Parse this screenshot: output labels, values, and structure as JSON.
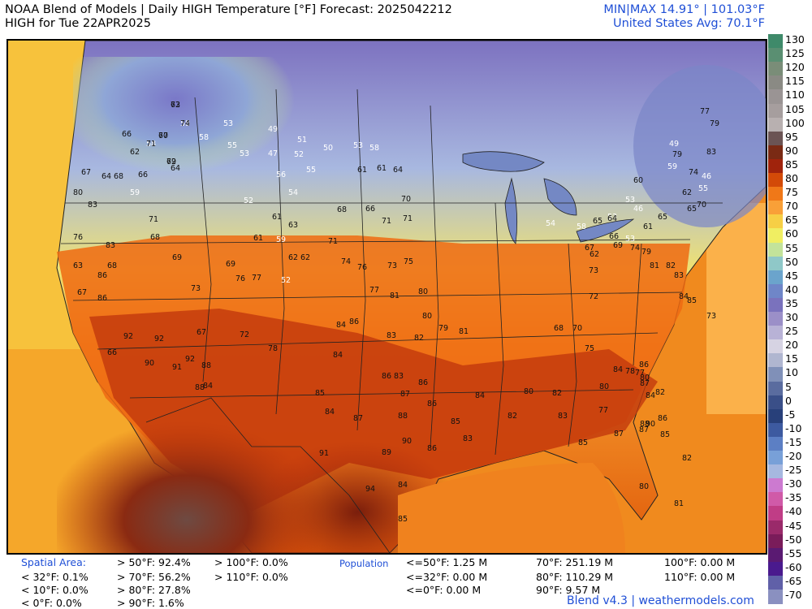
{
  "header": {
    "title_line1": "NOAA Blend of Models | Daily HIGH Temperature [°F] Forecast: 2025042212",
    "title_line2": "HIGH for Tue 22APR2025",
    "minmax": "MIN|MAX 14.91° | 101.03°F",
    "us_avg": "United States Avg: 70.1°F"
  },
  "colorbar": {
    "labels": [
      "130",
      "125",
      "120",
      "115",
      "110",
      "105",
      "100",
      "95",
      "90",
      "85",
      "80",
      "75",
      "70",
      "65",
      "60",
      "55",
      "50",
      "45",
      "40",
      "35",
      "30",
      "25",
      "20",
      "15",
      "10",
      "5",
      "0",
      "-5",
      "-10",
      "-15",
      "-20",
      "-25",
      "-30",
      "-35",
      "-40",
      "-45",
      "-50",
      "-55",
      "-60",
      "-65",
      "-70"
    ],
    "colors": [
      "#3f8a6a",
      "#5a8f72",
      "#7a8d78",
      "#8a8a84",
      "#9a9494",
      "#a69e9e",
      "#b8b0b0",
      "#6b5454",
      "#7a2a14",
      "#a0230c",
      "#d34a08",
      "#f07818",
      "#f9a038",
      "#f7cf45",
      "#f0ee62",
      "#c3e39a",
      "#8fc8c8",
      "#6ba4cc",
      "#6f86c8",
      "#7a72bd",
      "#9b8fc8",
      "#b8b2d6",
      "#d6d3e3",
      "#b0b6d0",
      "#8090b8",
      "#5a6c9f",
      "#3a4f88",
      "#28407a",
      "#3d5aa0",
      "#5c7fc4",
      "#78a0d8",
      "#a6b8e0",
      "#cc7ad0",
      "#d05aa8",
      "#c03d86",
      "#9a2a6a",
      "#7a1c5a",
      "#5a1a72",
      "#4a1a8e",
      "#6060a8",
      "#8a90c0"
    ]
  },
  "map": {
    "points": [
      {
        "v": "58"
      },
      {
        "v": "63"
      },
      {
        "v": "58"
      },
      {
        "v": "60"
      },
      {
        "v": "62"
      },
      {
        "v": "64"
      },
      {
        "v": "66"
      },
      {
        "v": "66"
      },
      {
        "v": "62"
      },
      {
        "v": "58"
      },
      {
        "v": "59"
      },
      {
        "v": "64"
      },
      {
        "v": "67"
      },
      {
        "v": "68"
      },
      {
        "v": "80"
      },
      {
        "v": "83"
      },
      {
        "v": "76"
      },
      {
        "v": "83"
      },
      {
        "v": "86"
      },
      {
        "v": "86"
      },
      {
        "v": "67"
      },
      {
        "v": "63"
      },
      {
        "v": "68"
      },
      {
        "v": "66"
      },
      {
        "v": "92"
      },
      {
        "v": "90"
      },
      {
        "v": "91"
      },
      {
        "v": "92"
      },
      {
        "v": "92"
      },
      {
        "v": "88"
      },
      {
        "v": "84"
      },
      {
        "v": "88"
      },
      {
        "v": "67"
      },
      {
        "v": "72"
      },
      {
        "v": "78"
      },
      {
        "v": "71"
      },
      {
        "v": "68"
      },
      {
        "v": "69"
      },
      {
        "v": "73"
      },
      {
        "v": "76"
      },
      {
        "v": "77"
      },
      {
        "v": "69"
      },
      {
        "v": "61"
      },
      {
        "v": "59"
      },
      {
        "v": "62"
      },
      {
        "v": "52"
      },
      {
        "v": "49"
      },
      {
        "v": "53"
      },
      {
        "v": "55"
      },
      {
        "v": "53"
      },
      {
        "v": "47"
      },
      {
        "v": "51"
      },
      {
        "v": "52"
      },
      {
        "v": "55"
      },
      {
        "v": "50"
      },
      {
        "v": "53"
      },
      {
        "v": "58"
      },
      {
        "v": "61"
      },
      {
        "v": "61"
      },
      {
        "v": "64"
      },
      {
        "v": "56"
      },
      {
        "v": "54"
      },
      {
        "v": "52"
      },
      {
        "v": "61"
      },
      {
        "v": "63"
      },
      {
        "v": "62"
      },
      {
        "v": "68"
      },
      {
        "v": "66"
      },
      {
        "v": "70"
      },
      {
        "v": "71"
      },
      {
        "v": "71"
      },
      {
        "v": "71"
      },
      {
        "v": "74"
      },
      {
        "v": "76"
      },
      {
        "v": "73"
      },
      {
        "v": "75"
      },
      {
        "v": "77"
      },
      {
        "v": "81"
      },
      {
        "v": "80"
      },
      {
        "v": "80"
      },
      {
        "v": "79"
      },
      {
        "v": "84"
      },
      {
        "v": "86"
      },
      {
        "v": "83"
      },
      {
        "v": "82"
      },
      {
        "v": "81"
      },
      {
        "v": "84"
      },
      {
        "v": "86"
      },
      {
        "v": "83"
      },
      {
        "v": "86"
      },
      {
        "v": "87"
      },
      {
        "v": "85"
      },
      {
        "v": "84"
      },
      {
        "v": "87"
      },
      {
        "v": "88"
      },
      {
        "v": "86"
      },
      {
        "v": "85"
      },
      {
        "v": "90"
      },
      {
        "v": "91"
      },
      {
        "v": "89"
      },
      {
        "v": "86"
      },
      {
        "v": "94"
      },
      {
        "v": "84"
      },
      {
        "v": "85"
      },
      {
        "v": "83"
      },
      {
        "v": "84"
      },
      {
        "v": "82"
      },
      {
        "v": "80"
      },
      {
        "v": "82"
      },
      {
        "v": "83"
      },
      {
        "v": "85"
      },
      {
        "v": "87"
      },
      {
        "v": "87"
      },
      {
        "v": "86"
      },
      {
        "v": "90"
      },
      {
        "v": "88"
      },
      {
        "v": "85"
      },
      {
        "v": "80"
      },
      {
        "v": "82"
      },
      {
        "v": "81"
      },
      {
        "v": "77"
      },
      {
        "v": "80"
      },
      {
        "v": "84"
      },
      {
        "v": "86"
      },
      {
        "v": "87"
      },
      {
        "v": "84"
      },
      {
        "v": "82"
      },
      {
        "v": "80"
      },
      {
        "v": "78"
      },
      {
        "v": "77"
      },
      {
        "v": "75"
      },
      {
        "v": "70"
      },
      {
        "v": "68"
      },
      {
        "v": "72"
      },
      {
        "v": "73"
      },
      {
        "v": "67"
      },
      {
        "v": "62"
      },
      {
        "v": "65"
      },
      {
        "v": "69"
      },
      {
        "v": "74"
      },
      {
        "v": "79"
      },
      {
        "v": "81"
      },
      {
        "v": "82"
      },
      {
        "v": "83"
      },
      {
        "v": "84"
      },
      {
        "v": "85"
      },
      {
        "v": "73"
      },
      {
        "v": "62"
      },
      {
        "v": "65"
      },
      {
        "v": "70"
      },
      {
        "v": "74"
      },
      {
        "v": "77"
      },
      {
        "v": "79"
      },
      {
        "v": "83"
      },
      {
        "v": "79"
      },
      {
        "v": "59"
      },
      {
        "v": "49"
      },
      {
        "v": "46"
      },
      {
        "v": "55"
      },
      {
        "v": "60"
      },
      {
        "v": "53"
      },
      {
        "v": "46"
      },
      {
        "v": "53"
      },
      {
        "v": "54"
      },
      {
        "v": "58"
      },
      {
        "v": "64"
      },
      {
        "v": "66"
      },
      {
        "v": "53"
      },
      {
        "v": "61"
      },
      {
        "v": "65"
      },
      {
        "v": "71"
      },
      {
        "v": "72"
      },
      {
        "v": "74"
      },
      {
        "v": "77"
      },
      {
        "v": "79"
      }
    ],
    "place_labels": []
  },
  "stats": {
    "spatial_title": "Spatial Area:",
    "population_title": "Population",
    "spatial": [
      "< 32°F: 0.1%",
      "< 10°F: 0.0%",
      "< 0°F: 0.0%",
      "> 50°F: 92.4%",
      "> 70°F: 56.2%",
      "> 80°F: 27.8%",
      "> 90°F: 1.6%",
      "> 100°F: 0.0%",
      "> 110°F: 0.0%"
    ],
    "population": [
      "<=50°F: 1.25 M",
      "<=32°F: 0.00 M",
      "<=0°F: 0.00 M",
      "70°F: 251.19 M",
      "80°F: 110.29 M",
      "90°F: 9.57 M",
      "100°F: 0.00 M",
      "110°F: 0.00 M"
    ],
    "footer": "Blend v4.3 | weathermodels.com"
  }
}
